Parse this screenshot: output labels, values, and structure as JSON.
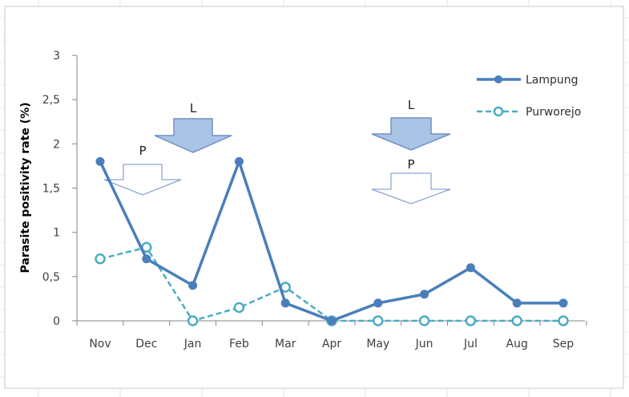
{
  "chart_data": {
    "type": "line",
    "title": "",
    "xlabel": "",
    "ylabel": "Parasite positivity rate (%)",
    "categories": [
      "Nov",
      "Dec",
      "Jan",
      "Feb",
      "Mar",
      "Apr",
      "May",
      "Jun",
      "Jul",
      "Aug",
      "Sep"
    ],
    "y_tick_labels": [
      "0",
      "0,5",
      "1",
      "1,5",
      "2",
      "2,5",
      "3"
    ],
    "ylim": [
      0,
      3
    ],
    "grid": false,
    "legend_position": "top-right",
    "series": [
      {
        "name": "Lampung",
        "color": "#4a7ebb",
        "style": "solid",
        "marker": "filled-circle",
        "values": [
          1.8,
          0.7,
          0.4,
          1.8,
          0.2,
          0,
          0.2,
          0.3,
          0.6,
          0.2,
          0.2
        ]
      },
      {
        "name": "Purworejo",
        "color": "#4bacc6",
        "style": "dashed",
        "marker": "open-circle",
        "values": [
          0.7,
          0.83,
          0,
          0.15,
          0.38,
          0,
          0,
          0,
          0,
          0,
          0
        ]
      }
    ],
    "annotations": [
      {
        "label": "L",
        "style": "filled",
        "at_category": "Jan"
      },
      {
        "label": "P",
        "style": "outline",
        "at_category": "Dec"
      },
      {
        "label": "L",
        "style": "filled",
        "at_category": "Jun"
      },
      {
        "label": "P",
        "style": "outline",
        "at_category": "Jun"
      }
    ]
  }
}
